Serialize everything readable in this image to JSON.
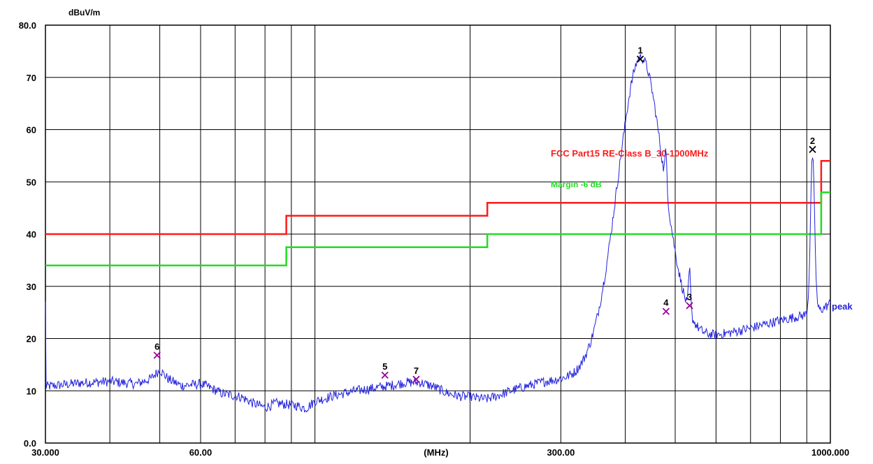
{
  "chart_data": {
    "type": "line",
    "y_unit": "dBuV/m",
    "x_unit": "(MHz)",
    "x_scale": "log",
    "xlim": [
      30,
      1000
    ],
    "ylim": [
      0,
      80
    ],
    "grid": true,
    "y_tick_labels": [
      {
        "value": 80,
        "label": "80.0"
      },
      {
        "value": 70,
        "label": "70"
      },
      {
        "value": 60,
        "label": "60"
      },
      {
        "value": 50,
        "label": "50"
      },
      {
        "value": 40,
        "label": "40"
      },
      {
        "value": 30,
        "label": "30"
      },
      {
        "value": 20,
        "label": "20"
      },
      {
        "value": 10,
        "label": "10"
      },
      {
        "value": 0,
        "label": "0.0"
      }
    ],
    "x_tick_labels": [
      {
        "value": 30,
        "label": "30.000"
      },
      {
        "value": 60,
        "label": "60.00"
      },
      {
        "value": 300,
        "label": "300.00"
      },
      {
        "value": 1000,
        "label": "1000.000"
      }
    ],
    "x_gridlines": [
      40,
      50,
      60,
      70,
      80,
      90,
      100,
      200,
      300,
      400,
      500,
      600,
      700,
      800,
      900
    ],
    "limit_line": {
      "name": "FCC Part15 RE-Class B_30-1000MHz",
      "color": "#ff1a1a",
      "points": [
        [
          30,
          40
        ],
        [
          88,
          40
        ],
        [
          88,
          43.5
        ],
        [
          216,
          43.5
        ],
        [
          216,
          46
        ],
        [
          960,
          46
        ],
        [
          960,
          54
        ],
        [
          1000,
          54
        ]
      ]
    },
    "margin_line": {
      "name": "Margin -6 dB",
      "color": "#22dd22",
      "points": [
        [
          30,
          34
        ],
        [
          88,
          34
        ],
        [
          88,
          37.5
        ],
        [
          216,
          37.5
        ],
        [
          216,
          40
        ],
        [
          960,
          40
        ],
        [
          960,
          48
        ],
        [
          1000,
          48
        ]
      ]
    },
    "trace": {
      "name": "peak",
      "color": "#2222dd",
      "baseline": [
        [
          30,
          10.8
        ],
        [
          35,
          11.5
        ],
        [
          40,
          11.8
        ],
        [
          45,
          11.3
        ],
        [
          48,
          12.3
        ],
        [
          50,
          14
        ],
        [
          52,
          12.2
        ],
        [
          55,
          11
        ],
        [
          60,
          11.3
        ],
        [
          62,
          10.8
        ],
        [
          66,
          9.5
        ],
        [
          72,
          8.8
        ],
        [
          76,
          7.6
        ],
        [
          80,
          6.8
        ],
        [
          84,
          7.6
        ],
        [
          88,
          7.4
        ],
        [
          92,
          7.2
        ],
        [
          96,
          6.6
        ],
        [
          100,
          8
        ],
        [
          110,
          9.2
        ],
        [
          120,
          10
        ],
        [
          130,
          10.5
        ],
        [
          140,
          11
        ],
        [
          150,
          11.6
        ],
        [
          160,
          11.6
        ],
        [
          170,
          10.8
        ],
        [
          180,
          9.6
        ],
        [
          190,
          9
        ],
        [
          200,
          8.8
        ],
        [
          215,
          8.4
        ],
        [
          225,
          9
        ],
        [
          240,
          10
        ],
        [
          260,
          11
        ],
        [
          280,
          11.8
        ],
        [
          300,
          12.2
        ],
        [
          320,
          12.6
        ],
        [
          350,
          14
        ],
        [
          400,
          15
        ],
        [
          420,
          16.5
        ],
        [
          440,
          17.2
        ],
        [
          470,
          17.6
        ],
        [
          500,
          18.3
        ],
        [
          550,
          19.5
        ],
        [
          600,
          20.5
        ],
        [
          700,
          22
        ],
        [
          800,
          23.5
        ],
        [
          900,
          24.6
        ],
        [
          930,
          25
        ],
        [
          970,
          25.8
        ],
        [
          1000,
          26.8
        ]
      ],
      "peaks": [
        {
          "f": 427.8,
          "amp": 57,
          "width": 0.045
        },
        {
          "f": 479.9,
          "amp": 7,
          "width": 0.002
        },
        {
          "f": 533.1,
          "amp": 8,
          "width": 0.002
        },
        {
          "f": 923.4,
          "amp": 30,
          "width": 0.004
        }
      ]
    },
    "markers": [
      {
        "label": "1",
        "freq": 427.8,
        "level": 73.5,
        "color": "#000000"
      },
      {
        "label": "2",
        "freq": 923.4,
        "level": 56.2,
        "color": "#000000"
      },
      {
        "label": "3",
        "freq": 533.1,
        "level": 26.3,
        "color": "#990099"
      },
      {
        "label": "4",
        "freq": 479.9,
        "level": 25.2,
        "color": "#990099"
      },
      {
        "label": "5",
        "freq": 136.7,
        "level": 13.0,
        "color": "#990099"
      },
      {
        "label": "6",
        "freq": 49.4,
        "level": 16.8,
        "color": "#990099"
      },
      {
        "label": "7",
        "freq": 157.2,
        "level": 12.2,
        "color": "#990099"
      }
    ]
  }
}
